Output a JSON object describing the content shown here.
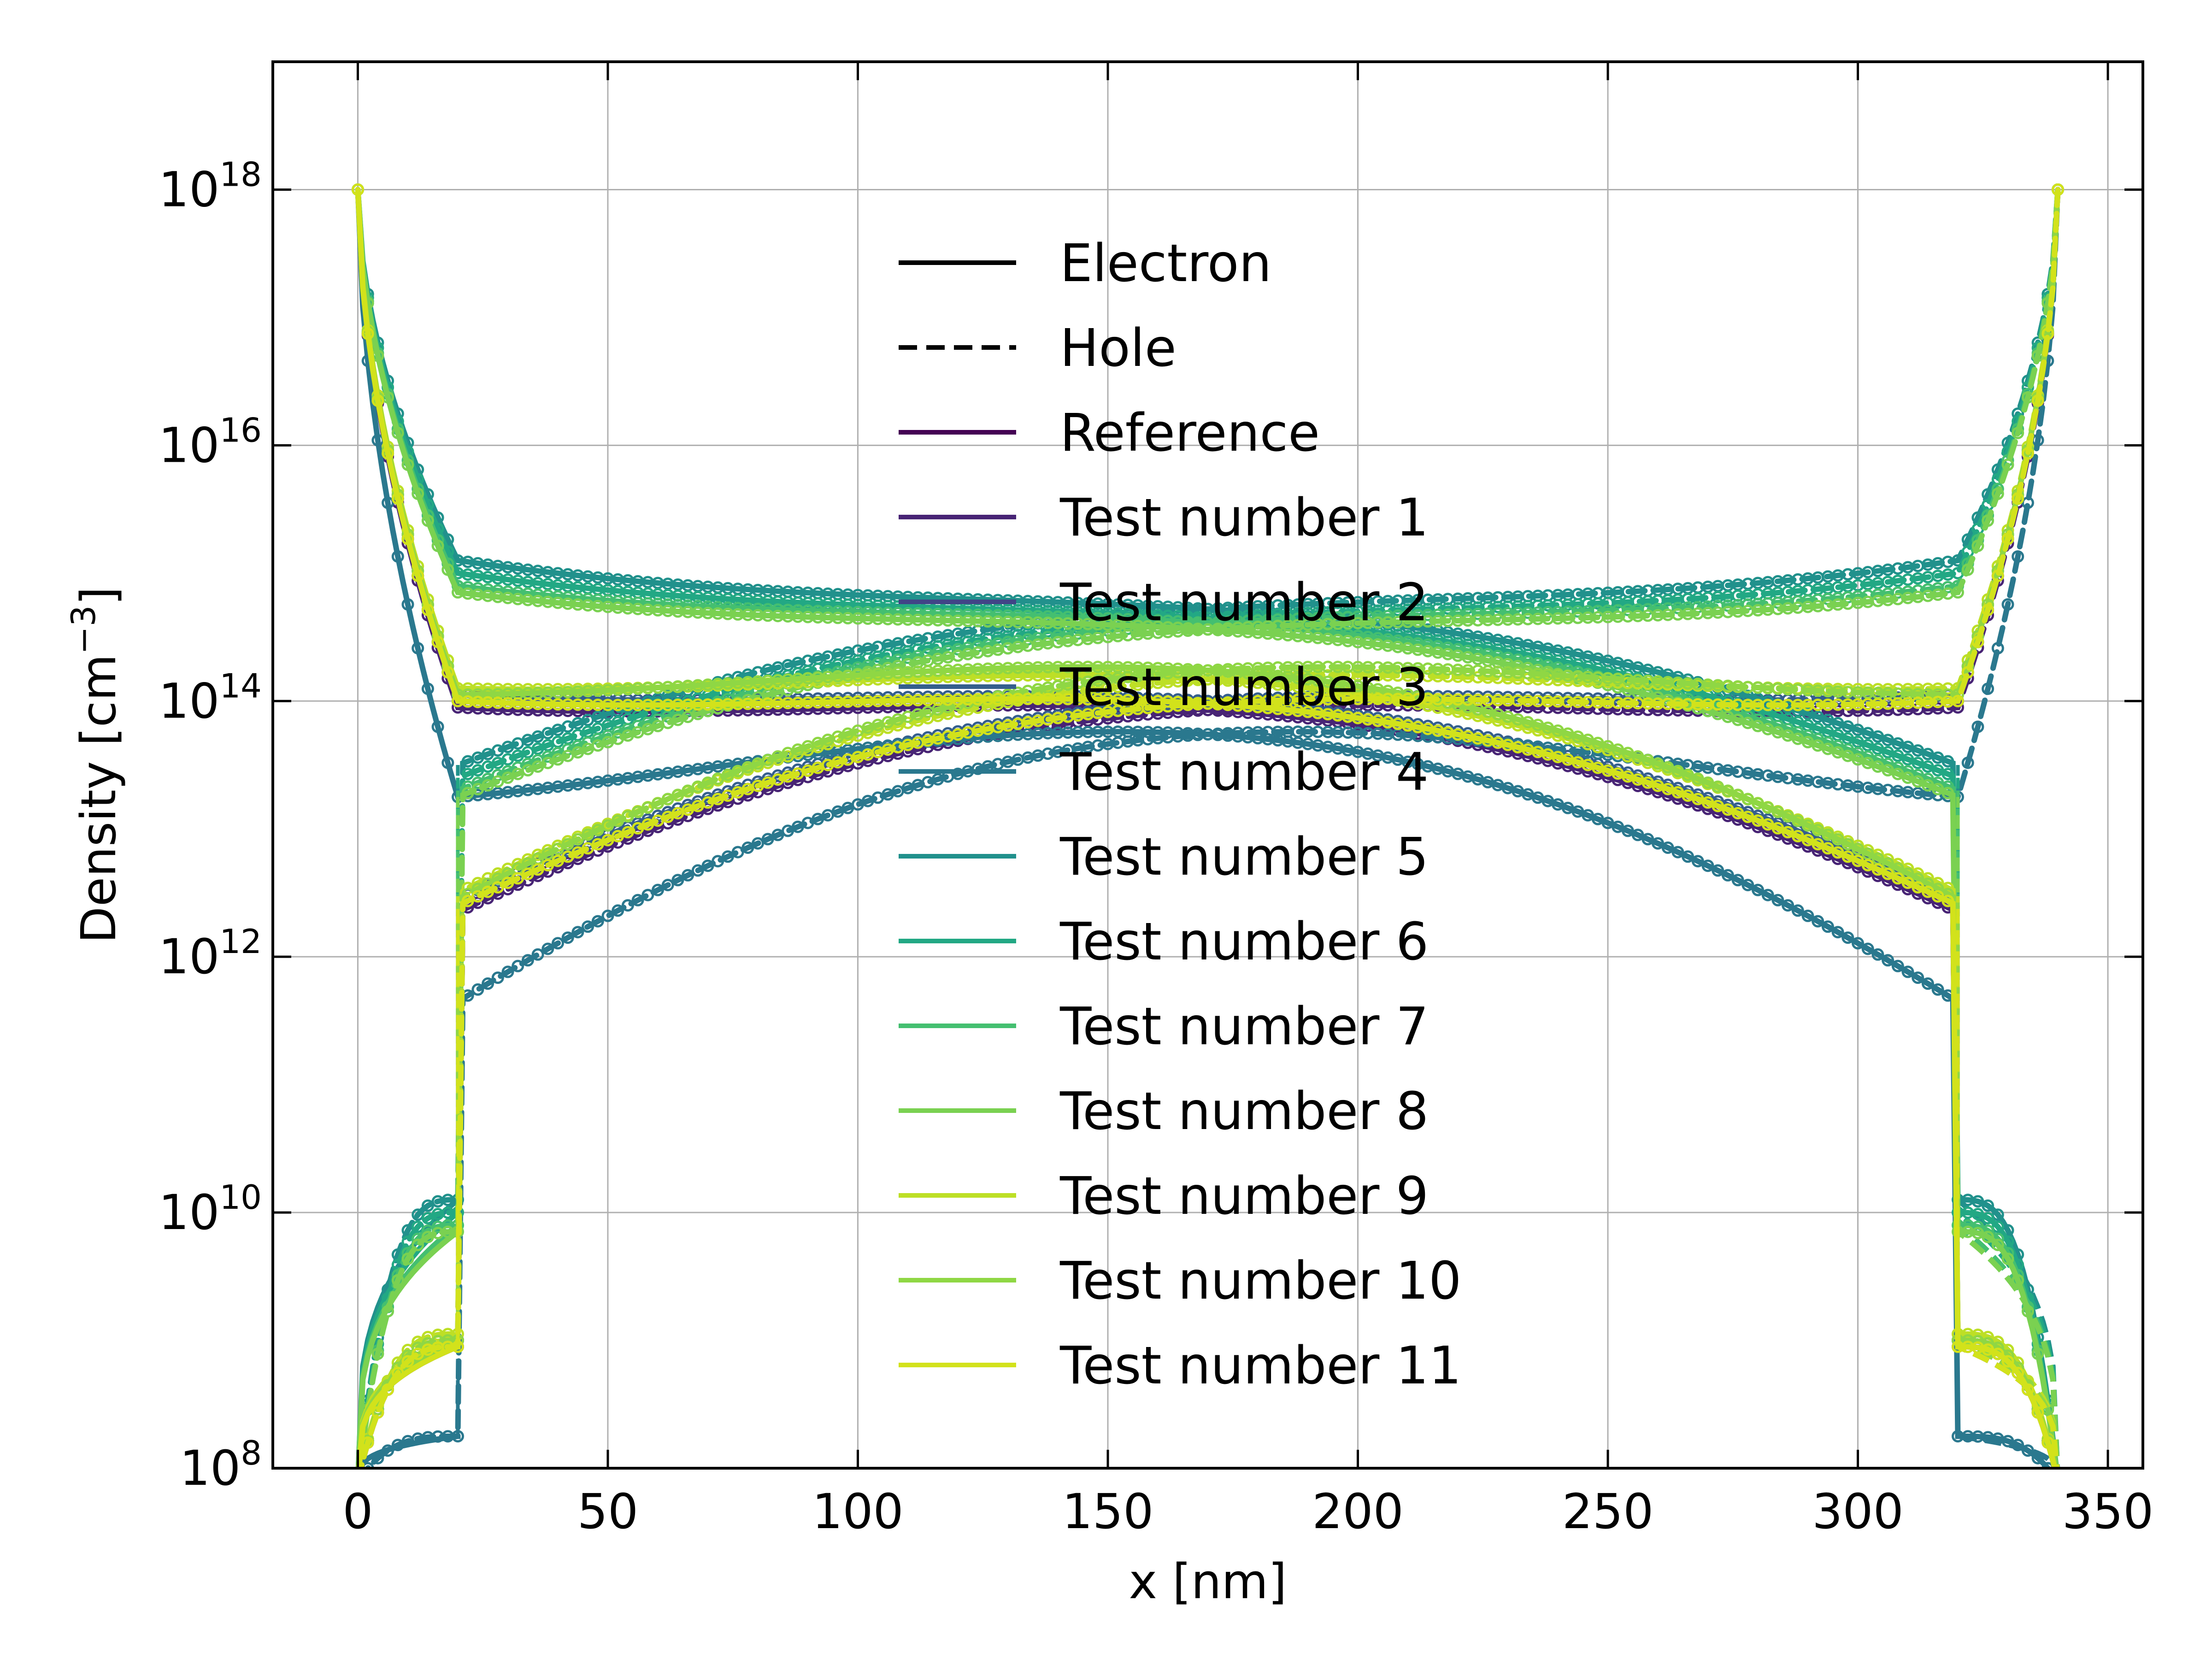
{
  "chart_data": {
    "type": "line",
    "title": "",
    "xlabel": "x [nm]",
    "ylabel_main": "Density [cm",
    "ylabel_exp": "−3",
    "ylabel_close": "]",
    "xlim": [
      -17,
      357
    ],
    "ylim_log10": [
      8,
      19
    ],
    "yscale": "log",
    "grid": true,
    "legend_position": "center",
    "x_ticks": [
      0,
      50,
      100,
      150,
      200,
      250,
      300,
      350
    ],
    "y_ticks": [
      {
        "base": "10",
        "exp": "8",
        "value_log10": 8
      },
      {
        "base": "10",
        "exp": "10",
        "value_log10": 10
      },
      {
        "base": "10",
        "exp": "12",
        "value_log10": 12
      },
      {
        "base": "10",
        "exp": "14",
        "value_log10": 14
      },
      {
        "base": "10",
        "exp": "16",
        "value_log10": 16
      },
      {
        "base": "10",
        "exp": "18",
        "value_log10": 18
      }
    ],
    "regions": {
      "left_contact_end": 20,
      "right_contact_start": 320,
      "device_end": 340
    },
    "legend": [
      {
        "label": "Electron",
        "color": "#000000",
        "dash": "solid"
      },
      {
        "label": "Hole",
        "color": "#000000",
        "dash": "dashed"
      },
      {
        "label": "Reference",
        "color": "#440154",
        "dash": "solid"
      },
      {
        "label": "Test number 1",
        "color": "#482475",
        "dash": "solid"
      },
      {
        "label": "Test number 2",
        "color": "#414487",
        "dash": "solid"
      },
      {
        "label": "Test number 3",
        "color": "#355f8d",
        "dash": "solid"
      },
      {
        "label": "Test number 4",
        "color": "#2a788e",
        "dash": "solid"
      },
      {
        "label": "Test number 5",
        "color": "#21918c",
        "dash": "solid"
      },
      {
        "label": "Test number 6",
        "color": "#22a884",
        "dash": "solid"
      },
      {
        "label": "Test number 7",
        "color": "#44bf70",
        "dash": "solid"
      },
      {
        "label": "Test number 8",
        "color": "#7ad151",
        "dash": "solid"
      },
      {
        "label": "Test number 9",
        "color": "#bddf26",
        "dash": "solid"
      },
      {
        "label": "Test number 10",
        "color": "#8fd744",
        "dash": "solid"
      },
      {
        "label": "Test number 11",
        "color": "#d2e21b",
        "dash": "solid"
      }
    ],
    "series": [
      {
        "name": "Reference",
        "color": "#440154",
        "contact_density_log10": 18,
        "interface_electron_log10": 12.4,
        "interface_hole_log10": 12.4,
        "edge_minority_log10": 9.0,
        "mid_log10": 14.5
      },
      {
        "name": "Test number 1",
        "color": "#482475",
        "contact_density_log10": 18,
        "interface_electron_log10": 12.35,
        "interface_hole_log10": 12.35,
        "edge_minority_log10": 8.95,
        "mid_log10": 14.45
      },
      {
        "name": "Test number 2",
        "color": "#414487",
        "contact_density_log10": 18,
        "interface_electron_log10": 12.4,
        "interface_hole_log10": 12.4,
        "edge_minority_log10": 9.0,
        "mid_log10": 14.5
      },
      {
        "name": "Test number 3",
        "color": "#355f8d",
        "contact_density_log10": 18,
        "interface_electron_log10": 12.45,
        "interface_hole_log10": 12.45,
        "edge_minority_log10": 9.0,
        "mid_log10": 14.5
      },
      {
        "name": "Test number 4",
        "color": "#2a788e",
        "contact_density_log10": 18,
        "interface_electron_log10": 11.65,
        "interface_hole_log10": 11.65,
        "edge_minority_log10": 8.25,
        "mid_log10": 14.6
      },
      {
        "name": "Test number 5",
        "color": "#21918c",
        "contact_density_log10": 18,
        "interface_electron_log10": 13.5,
        "interface_hole_log10": 13.5,
        "edge_minority_log10": 10.1,
        "mid_log10": 15.0
      },
      {
        "name": "Test number 6",
        "color": "#22a884",
        "contact_density_log10": 18,
        "interface_electron_log10": 13.4,
        "interface_hole_log10": 13.4,
        "edge_minority_log10": 10.0,
        "mid_log10": 14.95
      },
      {
        "name": "Test number 7",
        "color": "#44bf70",
        "contact_density_log10": 18,
        "interface_electron_log10": 13.3,
        "interface_hole_log10": 13.3,
        "edge_minority_log10": 9.9,
        "mid_log10": 14.95
      },
      {
        "name": "Test number 8",
        "color": "#7ad151",
        "contact_density_log10": 18,
        "interface_electron_log10": 13.25,
        "interface_hole_log10": 13.25,
        "edge_minority_log10": 9.85,
        "mid_log10": 14.9
      },
      {
        "name": "Test number 9",
        "color": "#bddf26",
        "contact_density_log10": 18,
        "interface_electron_log10": 12.5,
        "interface_hole_log10": 12.5,
        "edge_minority_log10": 9.05,
        "mid_log10": 14.75
      },
      {
        "name": "Test number 10",
        "color": "#8fd744",
        "contact_density_log10": 18,
        "interface_electron_log10": 12.45,
        "interface_hole_log10": 12.45,
        "edge_minority_log10": 9.0,
        "mid_log10": 14.9
      },
      {
        "name": "Test number 11",
        "color": "#d2e21b",
        "contact_density_log10": 18,
        "interface_electron_log10": 12.4,
        "interface_hole_log10": 12.4,
        "edge_minority_log10": 8.95,
        "mid_log10": 14.5
      }
    ]
  }
}
